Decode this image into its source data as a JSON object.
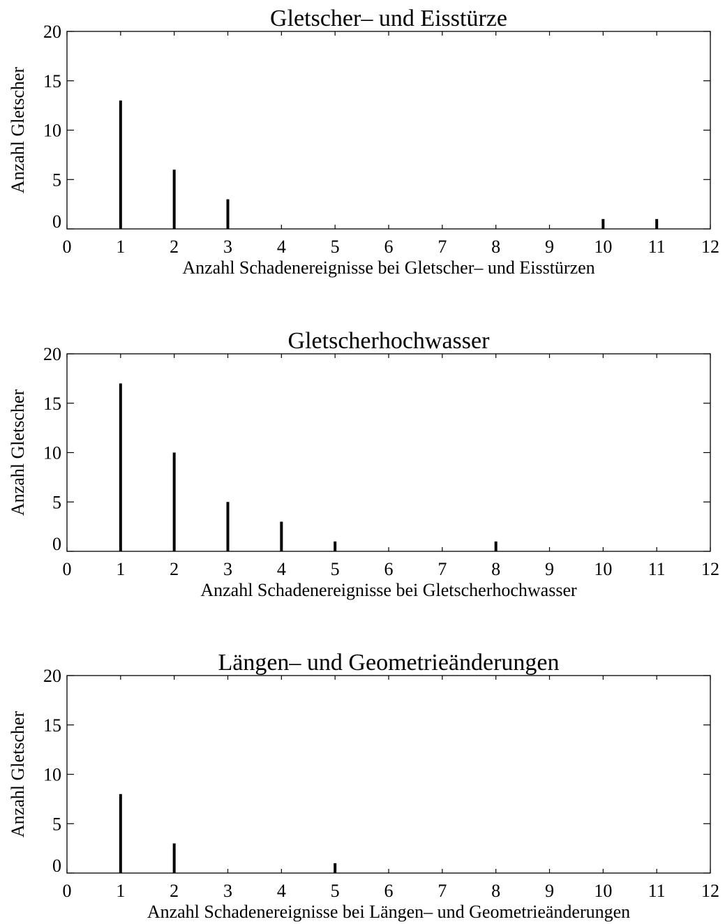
{
  "chart_data": [
    {
      "type": "bar",
      "title": "Gletscher– und Eisstürze",
      "xlabel": "Anzahl Schadenereignisse bei Gletscher– und Eisstürzen",
      "ylabel": "Anzahl Gletscher",
      "xlim": [
        0,
        12
      ],
      "ylim": [
        0,
        20
      ],
      "xticks": [
        0,
        1,
        2,
        3,
        4,
        5,
        6,
        7,
        8,
        9,
        10,
        11,
        12
      ],
      "yticks": [
        0,
        5,
        10,
        15,
        20
      ],
      "x": [
        1,
        2,
        3,
        10,
        11
      ],
      "values": [
        13,
        6,
        3,
        1,
        1
      ],
      "grid": false
    },
    {
      "type": "bar",
      "title": "Gletscherhochwasser",
      "xlabel": "Anzahl Schadenereignisse bei  Gletscherhochwasser",
      "ylabel": "Anzahl Gletscher",
      "xlim": [
        0,
        12
      ],
      "ylim": [
        0,
        20
      ],
      "xticks": [
        0,
        1,
        2,
        3,
        4,
        5,
        6,
        7,
        8,
        9,
        10,
        11,
        12
      ],
      "yticks": [
        0,
        5,
        10,
        15,
        20
      ],
      "x": [
        1,
        2,
        3,
        4,
        5,
        8
      ],
      "values": [
        17,
        10,
        5,
        3,
        1,
        1
      ],
      "grid": false
    },
    {
      "type": "bar",
      "title": "Längen– und Geometrieänderungen",
      "xlabel": "Anzahl Schadenereignisse bei Längen– und Geometrieänderungen",
      "ylabel": "Anzahl Gletscher",
      "xlim": [
        0,
        12
      ],
      "ylim": [
        0,
        20
      ],
      "xticks": [
        0,
        1,
        2,
        3,
        4,
        5,
        6,
        7,
        8,
        9,
        10,
        11,
        12
      ],
      "yticks": [
        0,
        5,
        10,
        15,
        20
      ],
      "x": [
        1,
        2,
        5
      ],
      "values": [
        8,
        3,
        1
      ],
      "grid": false
    }
  ]
}
